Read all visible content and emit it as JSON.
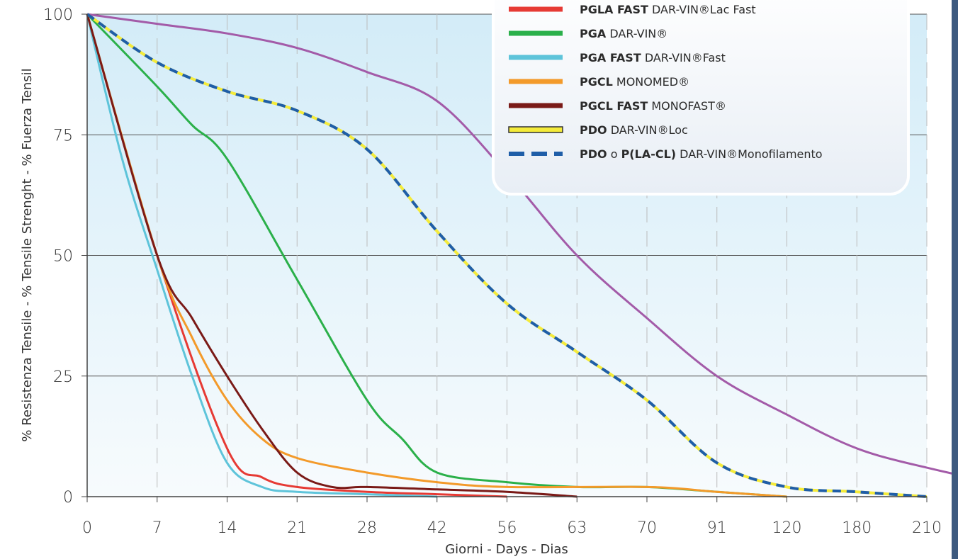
{
  "chart_data": {
    "type": "line",
    "x_categories": [
      "0",
      "7",
      "14",
      "21",
      "28",
      "42",
      "56",
      "63",
      "70",
      "91",
      "120",
      "180",
      "210"
    ],
    "xlabel": "Giorni - Days - Dias",
    "ylabel": "% Resistenza Tensile - % Tensile Strenght - % Fuerza Tensil",
    "ylim": [
      0,
      100
    ],
    "y_ticks": [
      "0",
      "25",
      "50",
      "75",
      "100"
    ],
    "legend_position": "top-right",
    "grid": true,
    "series": [
      {
        "name_bold": "PGLA",
        "name_rest": "DAR-VIN®Lac",
        "color": "#a35ba8",
        "points": [
          [
            0,
            100
          ],
          [
            1,
            98
          ],
          [
            2,
            96
          ],
          [
            3,
            93
          ],
          [
            4,
            88
          ],
          [
            5,
            82
          ],
          [
            6,
            67
          ],
          [
            7,
            50
          ],
          [
            8,
            37
          ],
          [
            9,
            25
          ],
          [
            10,
            17
          ],
          [
            11,
            10
          ],
          [
            12,
            6
          ],
          [
            13,
            3
          ],
          [
            14,
            1
          ],
          [
            15,
            0
          ]
        ]
      },
      {
        "name_bold": "PGLA FAST",
        "name_rest": "DAR-VIN®Lac Fast",
        "color": "#e63a34",
        "points": [
          [
            0,
            100
          ],
          [
            1,
            50
          ],
          [
            2,
            10
          ],
          [
            2.5,
            4
          ],
          [
            3,
            2
          ],
          [
            4,
            1
          ],
          [
            5,
            0.5
          ],
          [
            6,
            0
          ]
        ]
      },
      {
        "name_bold": "PGA",
        "name_rest": "DAR-VIN®",
        "color": "#2bb04a",
        "points": [
          [
            0,
            100
          ],
          [
            1,
            85
          ],
          [
            1.5,
            77
          ],
          [
            2,
            70
          ],
          [
            3,
            45
          ],
          [
            4,
            20
          ],
          [
            4.5,
            12
          ],
          [
            5,
            5
          ],
          [
            6,
            3
          ],
          [
            7,
            2
          ],
          [
            8,
            2
          ],
          [
            9,
            1
          ],
          [
            10,
            0
          ]
        ]
      },
      {
        "name_bold": "PGA FAST",
        "name_rest": "DAR-VIN®Fast",
        "color": "#5ec4da",
        "points": [
          [
            0,
            100
          ],
          [
            0.5,
            70
          ],
          [
            1,
            47
          ],
          [
            1.5,
            25
          ],
          [
            2,
            7
          ],
          [
            2.5,
            2
          ],
          [
            3,
            1
          ],
          [
            4,
            0.5
          ],
          [
            5,
            0
          ]
        ]
      },
      {
        "name_bold": "PGCL",
        "name_rest": "MONOMED®",
        "color": "#f39a2a",
        "points": [
          [
            0,
            100
          ],
          [
            1,
            50
          ],
          [
            1.5,
            33
          ],
          [
            2,
            20
          ],
          [
            2.5,
            12
          ],
          [
            3,
            8
          ],
          [
            4,
            5
          ],
          [
            5,
            3
          ],
          [
            6,
            2
          ],
          [
            8,
            2
          ],
          [
            9,
            1
          ],
          [
            10,
            0
          ]
        ]
      },
      {
        "name_bold": "PGCL FAST",
        "name_rest": "MONOFAST®",
        "color": "#7a1a17",
        "points": [
          [
            0,
            100
          ],
          [
            1,
            50
          ],
          [
            1.5,
            37
          ],
          [
            2,
            25
          ],
          [
            2.5,
            14
          ],
          [
            3,
            5
          ],
          [
            3.5,
            2
          ],
          [
            4,
            2
          ],
          [
            5,
            1.5
          ],
          [
            6,
            1
          ],
          [
            7,
            0
          ]
        ]
      },
      {
        "name_bold": "PDO",
        "name_rest": "DAR-VIN®Loc",
        "color": "#f4eb3a",
        "points": [
          [
            0,
            100
          ],
          [
            1,
            90
          ],
          [
            2,
            84
          ],
          [
            3,
            80
          ],
          [
            4,
            72
          ],
          [
            5,
            55
          ],
          [
            6,
            40
          ],
          [
            7,
            30
          ],
          [
            8,
            20
          ],
          [
            9,
            7
          ],
          [
            10,
            2
          ],
          [
            11,
            1
          ],
          [
            12,
            0
          ]
        ]
      },
      {
        "name_bold": "PDO",
        "name_mid": "o",
        "name_bold2": "P(LA-CL)",
        "name_rest": "DAR-VIN®Monofilamento",
        "color": "#1f5ea8",
        "dashed": true,
        "points": [
          [
            0,
            100
          ],
          [
            1,
            90
          ],
          [
            2,
            84
          ],
          [
            3,
            80
          ],
          [
            4,
            72
          ],
          [
            5,
            55
          ],
          [
            6,
            40
          ],
          [
            7,
            30
          ],
          [
            8,
            20
          ],
          [
            9,
            7
          ],
          [
            10,
            2
          ],
          [
            11,
            1
          ],
          [
            12,
            0
          ]
        ]
      }
    ]
  }
}
